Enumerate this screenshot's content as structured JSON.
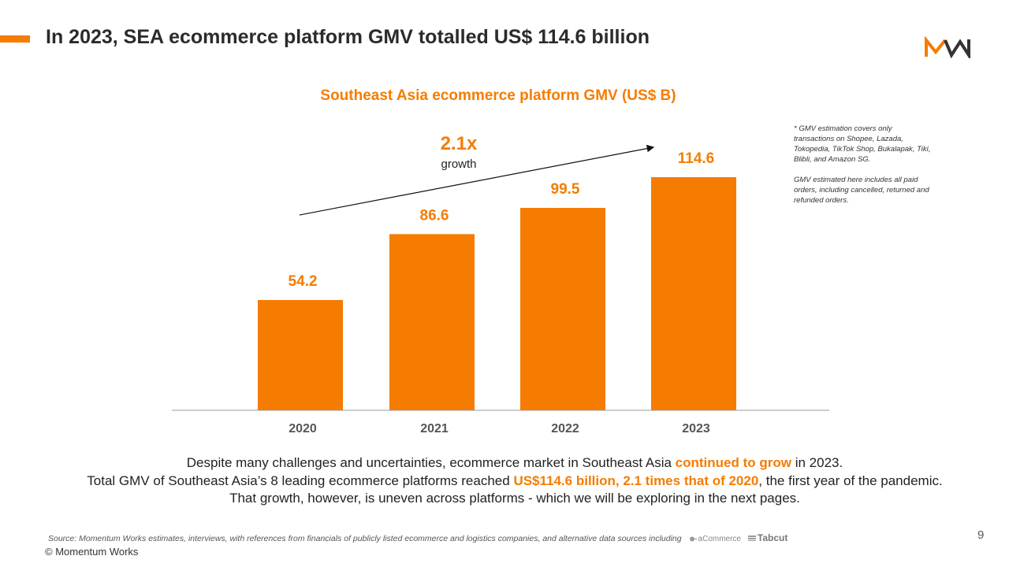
{
  "header": {
    "title": "In 2023, SEA ecommerce platform GMV totalled US$ 114.6 billion",
    "accent_color": "#f57c00",
    "logo_icon": "momentum-works-logo-icon"
  },
  "chart_data": {
    "type": "bar",
    "title": "Southeast Asia ecommerce platform GMV (US$ B)",
    "categories": [
      "2020",
      "2021",
      "2022",
      "2023"
    ],
    "values": [
      54.2,
      86.6,
      99.5,
      114.6
    ],
    "value_labels": [
      "54.2",
      "86.6",
      "99.5",
      "114.6"
    ],
    "xlabel": "",
    "ylabel": "",
    "ylim": [
      0,
      114.6
    ],
    "bar_color": "#f57c00",
    "grid": false,
    "annotation": {
      "value": "2.1x",
      "label": "growth"
    }
  },
  "footnote": {
    "line1": "* GMV estimation covers only transactions on Shopee, Lazada, Tokopedia, TikTok Shop, Bukalapak, Tiki, Blibli, and Amazon SG.",
    "line2": "GMV estimated here includes all paid orders, including cancelled, returned and refunded orders."
  },
  "summary": {
    "l1_a": "Despite many challenges and uncertainties, ecommerce market in Southeast Asia ",
    "l1_hl": "continued to grow",
    "l1_b": " in 2023.",
    "l2_a": "Total GMV of Southeast Asia’s 8 leading ecommerce platforms reached ",
    "l2_hl": "US$114.6 billion, 2.1 times that of 2020",
    "l2_b": ", the first year of the pandemic.",
    "l3": "That growth, however, is uneven across platforms - which we will be exploring in the next pages."
  },
  "footer": {
    "source": "Source: Momentum Works estimates, interviews, with references from financials of publicly listed ecommerce and logistics companies,  and alternative data sources including",
    "partner1": "aCommerce",
    "partner2": "Tabcut",
    "copyright": "© Momentum Works",
    "page_number": "9"
  }
}
